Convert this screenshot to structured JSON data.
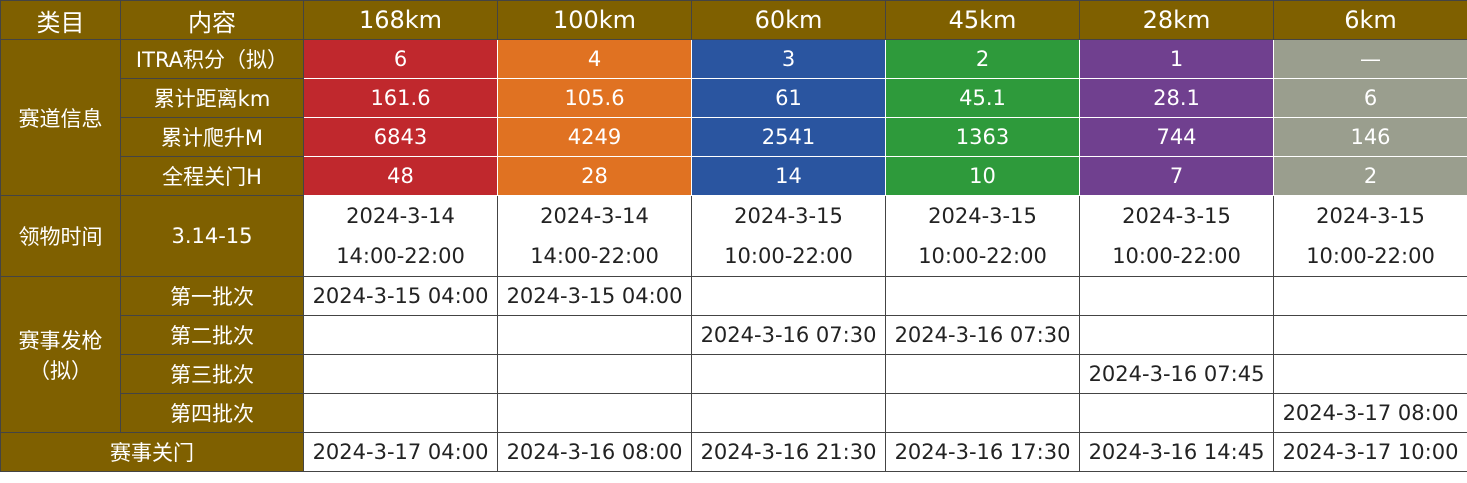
{
  "header": [
    "类目",
    "内容",
    "168km",
    "100km",
    "60km",
    "45km",
    "28km",
    "6km"
  ],
  "track_info": {
    "label": "赛道信息",
    "rows": [
      {
        "label": "ITRA积分（拟）",
        "values": [
          "6",
          "4",
          "3",
          "2",
          "1",
          "—"
        ]
      },
      {
        "label": "累计距离km",
        "values": [
          "161.6",
          "105.6",
          "61",
          "45.1",
          "28.1",
          "6"
        ]
      },
      {
        "label": "累计爬升M",
        "values": [
          "6843",
          "4249",
          "2541",
          "1363",
          "744",
          "146"
        ]
      },
      {
        "label": "全程关门H",
        "values": [
          "48",
          "28",
          "14",
          "10",
          "7",
          "2"
        ]
      }
    ]
  },
  "pickup": {
    "label": "领物时间",
    "content": "3.14-15",
    "cells": [
      {
        "date": "2024-3-14",
        "time": "14:00-22:00"
      },
      {
        "date": "2024-3-14",
        "time": "14:00-22:00"
      },
      {
        "date": "2024-3-15",
        "time": "10:00-22:00"
      },
      {
        "date": "2024-3-15",
        "time": "10:00-22:00"
      },
      {
        "date": "2024-3-15",
        "time": "10:00-22:00"
      },
      {
        "date": "2024-3-15",
        "time": "10:00-22:00"
      }
    ]
  },
  "start": {
    "label_lines": [
      "赛事发枪",
      "（拟）"
    ],
    "rows": [
      {
        "label": "第一批次",
        "values": [
          "2024-3-15 04:00",
          "2024-3-15 04:00",
          null,
          null,
          null,
          null
        ]
      },
      {
        "label": "第二批次",
        "values": [
          null,
          null,
          "2024-3-16 07:30",
          "2024-3-16 07:30",
          null,
          null
        ]
      },
      {
        "label": "第三批次",
        "values": [
          null,
          null,
          null,
          null,
          "2024-3-16 07:45",
          null
        ]
      },
      {
        "label": "第四批次",
        "values": [
          null,
          null,
          null,
          null,
          null,
          "2024-3-17 08:00"
        ]
      }
    ]
  },
  "cutoff": {
    "label": "赛事关门",
    "values": [
      "2024-3-17 04:00",
      "2024-3-16 08:00",
      "2024-3-16 21:30",
      "2024-3-16 17:30",
      "2024-3-16 14:45",
      "2024-3-17 10:00"
    ]
  }
}
